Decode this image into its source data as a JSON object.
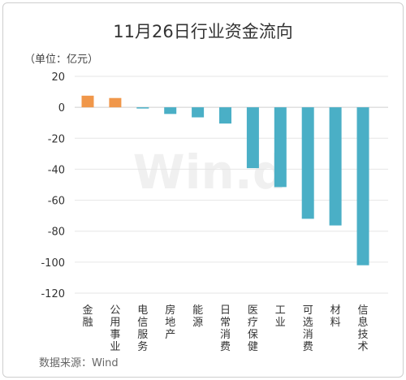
{
  "chart_data": {
    "type": "bar",
    "title": "11月26日行业资金流向",
    "unit_label": "（单位：亿元）",
    "source": "数据来源：Wind",
    "watermark": "Win.d",
    "ylim": [
      -120,
      20
    ],
    "yticks": [
      20,
      0,
      -20,
      -40,
      -60,
      -80,
      -100,
      -120
    ],
    "grid": true,
    "categories": [
      "金融",
      "公用事业",
      "电信服务",
      "房地产",
      "能源",
      "日常消费",
      "医疗保健",
      "工业",
      "可选消费",
      "材料",
      "信息技术"
    ],
    "values": [
      7.5,
      6.0,
      -0.8,
      -4.3,
      -6.5,
      -10.5,
      -39.3,
      -51.5,
      -72.0,
      -76.3,
      -102.0
    ],
    "positive_color": "#F0974A",
    "negative_color": "#4AAFC6"
  }
}
